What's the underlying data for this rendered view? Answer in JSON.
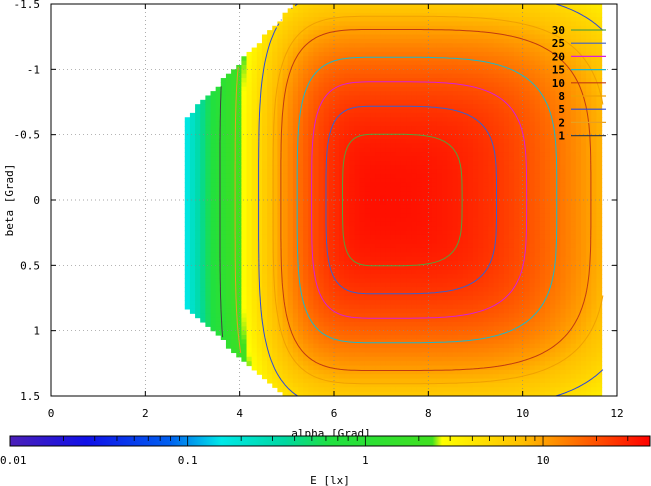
{
  "chart_data": {
    "type": "heatmap",
    "xlabel": "alpha [Grad]",
    "ylabel": "beta [Grad]",
    "colorbar_label": "E [lx]",
    "xlim": [
      0,
      12
    ],
    "ylim": [
      -1.5,
      1.5
    ],
    "y_axis_inverted": true,
    "x_ticks": [
      0,
      2,
      4,
      6,
      8,
      10,
      12
    ],
    "x_tick_labels": [
      "0",
      "2",
      "4",
      "6",
      "8",
      "10",
      "12"
    ],
    "y_ticks": [
      -1.5,
      -1,
      -0.5,
      0,
      0.5,
      1,
      1.5
    ],
    "y_tick_labels": [
      "-1.5",
      "-1",
      "-0.5",
      "0",
      "0.5",
      "1",
      "1.5"
    ],
    "grid": true,
    "legend_position": "top-right",
    "colorbar": {
      "scale": "log",
      "range": [
        0.01,
        40
      ],
      "ticks": [
        0.01,
        0.1,
        1,
        10
      ],
      "tick_labels": [
        "0.01",
        "0.1",
        "1",
        "10"
      ]
    },
    "contours": [
      {
        "name": "30",
        "level": 30,
        "color": "#57a13a"
      },
      {
        "name": "25",
        "level": 25,
        "color": "#3b5fcc"
      },
      {
        "name": "20",
        "level": 20,
        "color": "#d81fd8"
      },
      {
        "name": "15",
        "level": 15,
        "color": "#1fb7c8"
      },
      {
        "name": "10",
        "level": 10,
        "color": "#c03a10"
      },
      {
        "name": "8",
        "level": 8,
        "color": "#f0a000"
      },
      {
        "name": "5",
        "level": 5,
        "color": "#2c4ad8"
      },
      {
        "name": "2",
        "level": 2,
        "color": "#e8a020"
      },
      {
        "name": "1",
        "level": 1,
        "color": "#404040"
      }
    ],
    "field_region": {
      "alpha_min": 2.8,
      "alpha_max": 11.7,
      "beta_top_at_alpha_min": -0.6,
      "beta_bottom_at_alpha_min": 0.8,
      "peak_alpha": 7.0,
      "peak_beta": 0.0,
      "peak_value": 35
    }
  }
}
